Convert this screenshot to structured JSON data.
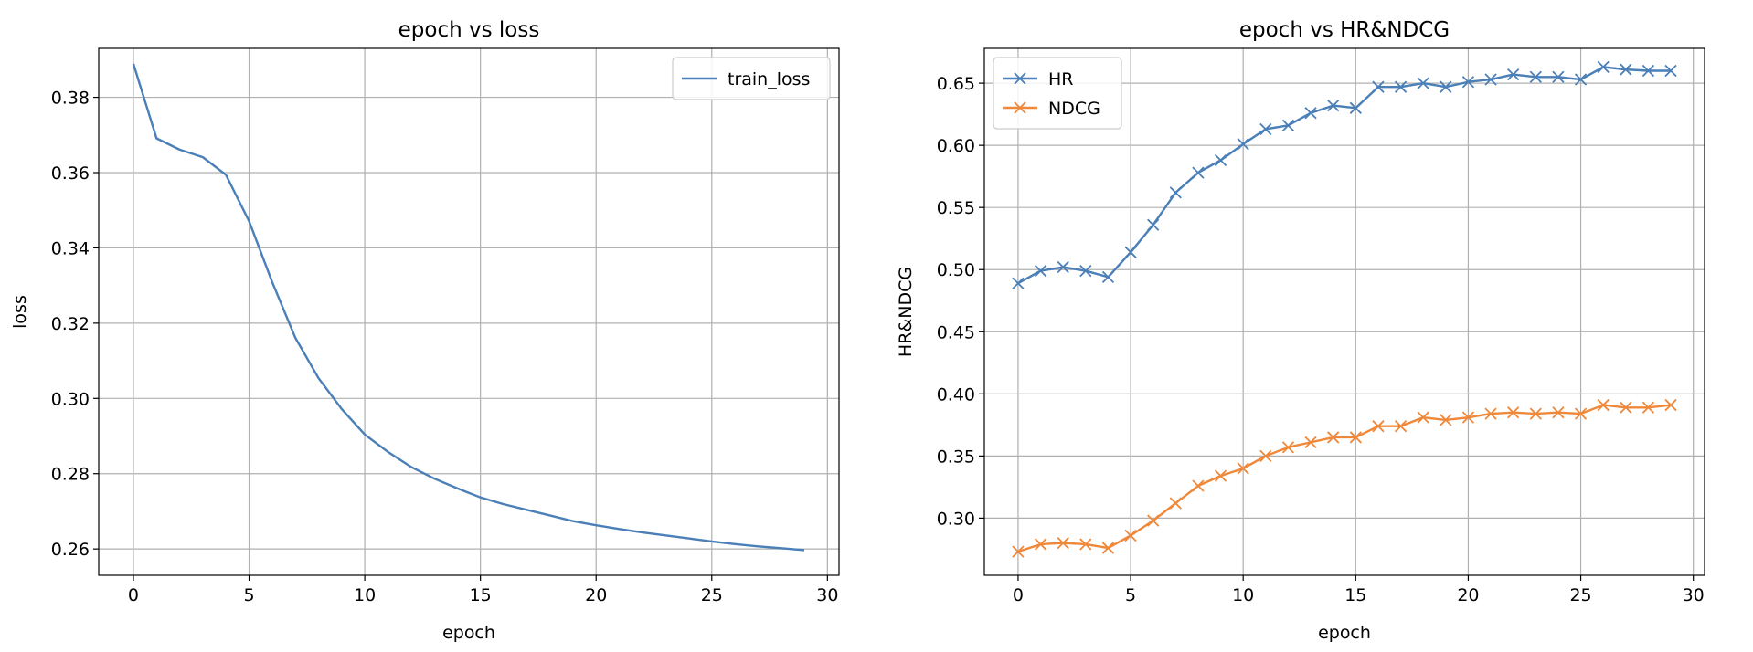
{
  "chart_data": [
    {
      "type": "line",
      "title": "epoch vs loss",
      "xlabel": "epoch",
      "ylabel": "loss",
      "xlim": [
        -1.5,
        30.5
      ],
      "ylim": [
        0.253,
        0.393
      ],
      "xticks": [
        0,
        5,
        10,
        15,
        20,
        25,
        30
      ],
      "yticks": [
        0.26,
        0.28,
        0.3,
        0.32,
        0.34,
        0.36,
        0.38
      ],
      "ytick_labels": [
        "0.26",
        "0.28",
        "0.30",
        "0.32",
        "0.34",
        "0.36",
        "0.38"
      ],
      "grid": true,
      "legend_position": "top-right",
      "x": [
        0,
        1,
        2,
        3,
        4,
        5,
        6,
        7,
        8,
        9,
        10,
        11,
        12,
        13,
        14,
        15,
        16,
        17,
        18,
        19,
        20,
        21,
        22,
        23,
        24,
        25,
        26,
        27,
        28,
        29
      ],
      "series": [
        {
          "name": "train_loss",
          "color": "#4a7fb8",
          "marker": "none",
          "values": [
            0.3889,
            0.3691,
            0.3661,
            0.3641,
            0.3594,
            0.3471,
            0.3309,
            0.3161,
            0.3054,
            0.2972,
            0.2904,
            0.2858,
            0.2818,
            0.2787,
            0.2761,
            0.2737,
            0.2719,
            0.2704,
            0.2689,
            0.2674,
            0.2663,
            0.2653,
            0.2644,
            0.2636,
            0.2628,
            0.262,
            0.2613,
            0.2607,
            0.2602,
            0.2597
          ]
        }
      ]
    },
    {
      "type": "line",
      "title": "epoch vs HR&NDCG",
      "xlabel": "epoch",
      "ylabel": "HR&NDCG",
      "xlim": [
        -1.5,
        30.5
      ],
      "ylim": [
        0.254,
        0.678
      ],
      "xticks": [
        0,
        5,
        10,
        15,
        20,
        25,
        30
      ],
      "yticks": [
        0.3,
        0.35,
        0.4,
        0.45,
        0.5,
        0.55,
        0.6,
        0.65
      ],
      "ytick_labels": [
        "0.30",
        "0.35",
        "0.40",
        "0.45",
        "0.50",
        "0.55",
        "0.60",
        "0.65"
      ],
      "grid": true,
      "legend_position": "top-left",
      "x": [
        0,
        1,
        2,
        3,
        4,
        5,
        6,
        7,
        8,
        9,
        10,
        11,
        12,
        13,
        14,
        15,
        16,
        17,
        18,
        19,
        20,
        21,
        22,
        23,
        24,
        25,
        26,
        27,
        28,
        29
      ],
      "series": [
        {
          "name": "HR",
          "color": "#4a7fb8",
          "marker": "x",
          "values": [
            0.489,
            0.499,
            0.502,
            0.499,
            0.494,
            0.514,
            0.536,
            0.562,
            0.578,
            0.588,
            0.601,
            0.613,
            0.616,
            0.626,
            0.632,
            0.63,
            0.647,
            0.647,
            0.65,
            0.647,
            0.651,
            0.653,
            0.657,
            0.655,
            0.655,
            0.653,
            0.663,
            0.661,
            0.66,
            0.66
          ]
        },
        {
          "name": "NDCG",
          "color": "#f0883a",
          "marker": "x",
          "values": [
            0.273,
            0.279,
            0.28,
            0.279,
            0.276,
            0.286,
            0.298,
            0.312,
            0.326,
            0.334,
            0.34,
            0.35,
            0.357,
            0.361,
            0.365,
            0.365,
            0.374,
            0.374,
            0.381,
            0.379,
            0.381,
            0.384,
            0.385,
            0.384,
            0.385,
            0.384,
            0.391,
            0.389,
            0.389,
            0.391
          ]
        }
      ]
    }
  ]
}
